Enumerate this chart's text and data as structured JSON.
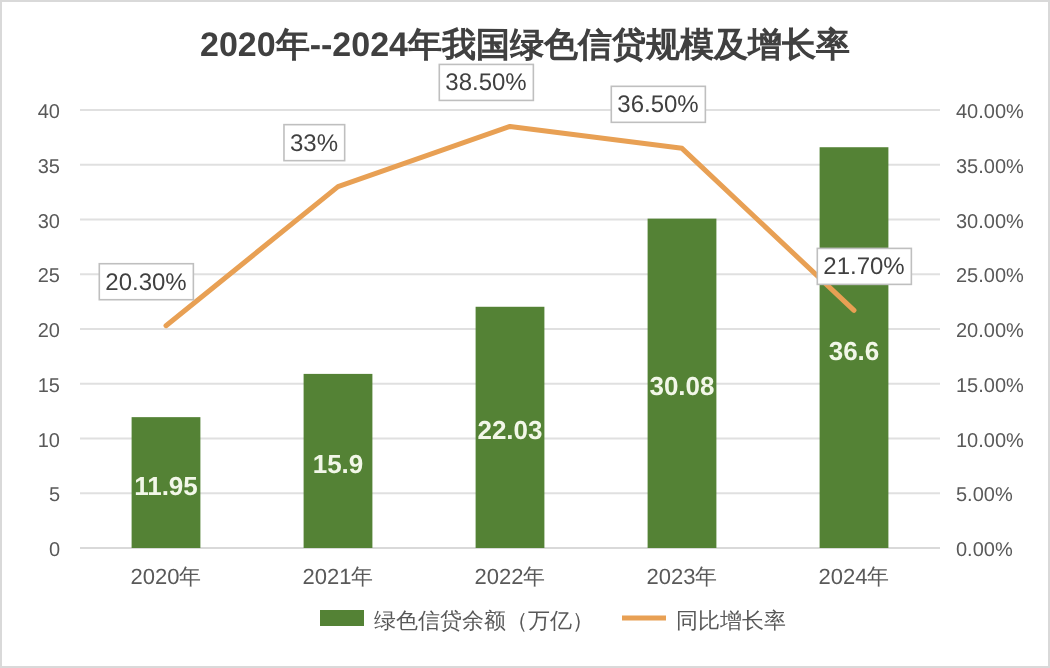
{
  "chart_data": {
    "type": "bar",
    "title": "2020年--2024年我国绿色信贷规模及增长率",
    "categories": [
      "2020年",
      "2021年",
      "2022年",
      "2023年",
      "2024年"
    ],
    "series": [
      {
        "name": "绿色信贷余额（万亿）",
        "type": "bar",
        "color": "#548235",
        "values": [
          11.95,
          15.9,
          22.03,
          30.08,
          36.6
        ],
        "value_labels": [
          "11.95",
          "15.9",
          "22.03",
          "30.08",
          "36.6"
        ]
      },
      {
        "name": "同比增长率",
        "type": "line",
        "axis": "y2",
        "color": "#e8a054",
        "values": [
          20.3,
          33,
          38.5,
          36.5,
          21.7
        ],
        "value_labels": [
          "20.30%",
          "33%",
          "38.50%",
          "36.50%",
          "21.70%"
        ]
      }
    ],
    "ylim": [
      0,
      40
    ],
    "yticks": [
      0,
      5,
      10,
      15,
      20,
      25,
      30,
      35,
      40
    ],
    "y2lim": [
      0,
      40
    ],
    "y2ticks": [
      {
        "value": 0,
        "label": "0.00%"
      },
      {
        "value": 5,
        "label": "5.00%"
      },
      {
        "value": 10,
        "label": "10.00%"
      },
      {
        "value": 15,
        "label": "15.00%"
      },
      {
        "value": 20,
        "label": "20.00%"
      },
      {
        "value": 25,
        "label": "25.00%"
      },
      {
        "value": 30,
        "label": "30.00%"
      },
      {
        "value": 35,
        "label": "35.00%"
      },
      {
        "value": 40,
        "label": "40.00%"
      }
    ],
    "grid": "y",
    "legend": "bottom"
  }
}
